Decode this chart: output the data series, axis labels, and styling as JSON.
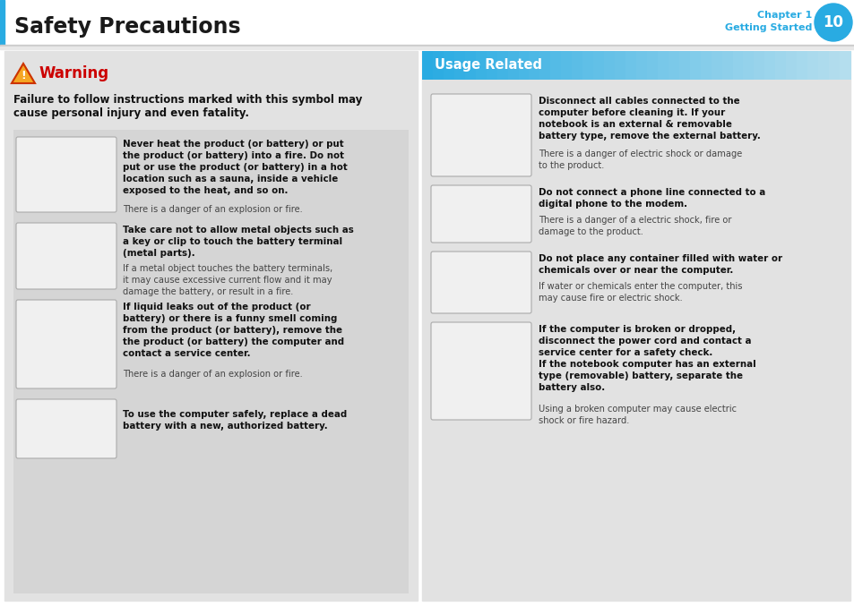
{
  "title": "Safety Precautions",
  "chapter": "Chapter 1",
  "chapter_sub": "Getting Started",
  "page_num": "10",
  "warning_title": "Warning",
  "warning_color": "#cc0000",
  "warning_intro_line1": "Failure to follow instructions marked with this symbol may",
  "warning_intro_line2": "cause personal injury and even fatality.",
  "usage_header_text": "Usage Related",
  "left_bg": "#e2e2e2",
  "right_bg": "#e2e2e2",
  "header_blue": "#29abe2",
  "box_bg": "#d0d0d0",
  "img_bg": "#f2f2f2",
  "img_border": "#bbbbbb",
  "bold_color": "#111111",
  "normal_color": "#444444",
  "warning_items_bold": [
    "Never heat the product (or battery) or put\nthe product (or battery) into a fire. Do not\nput or use the product (or battery) in a hot\nlocation such as a sauna, inside a vehicle\nexposed to the heat, and so on.",
    "Take care not to allow metal objects such as\na key or clip to touch the battery terminal\n(metal parts).",
    "If liquid leaks out of the product (or\nbattery) or there is a funny smell coming\nfrom the product (or battery), remove the\nthe product (or battery) the computer and\ncontact a service center.",
    "To use the computer safely, replace a dead\nbattery with a new, authorized battery."
  ],
  "warning_items_normal": [
    "There is a danger of an explosion or fire.",
    "If a metal object touches the battery terminals,\nit may cause excessive current flow and it may\ndamage the battery, or result in a fire.",
    "There is a danger of an explosion or fire.",
    ""
  ],
  "usage_items_bold": [
    "Disconnect all cables connected to the\ncomputer before cleaning it. If your\nnotebook is an external & removable\nbattery type, remove the external battery.",
    "Do not connect a phone line connected to a\ndigital phone to the modem.",
    "Do not place any container filled with water or\nchemicals over or near the computer.",
    "If the computer is broken or dropped,\ndisconnect the power cord and contact a\nservice center for a safety check.\nIf the notebook computer has an external\ntype (removable) battery, separate the\nbattery also."
  ],
  "usage_items_normal": [
    "There is a danger of electric shock or damage\nto the product.",
    "There is a danger of a electric shock, fire or\ndamage to the product.",
    "If water or chemicals enter the computer, this\nmay cause fire or electric shock.",
    "Using a broken computer may cause electric\nshock or fire hazard."
  ]
}
